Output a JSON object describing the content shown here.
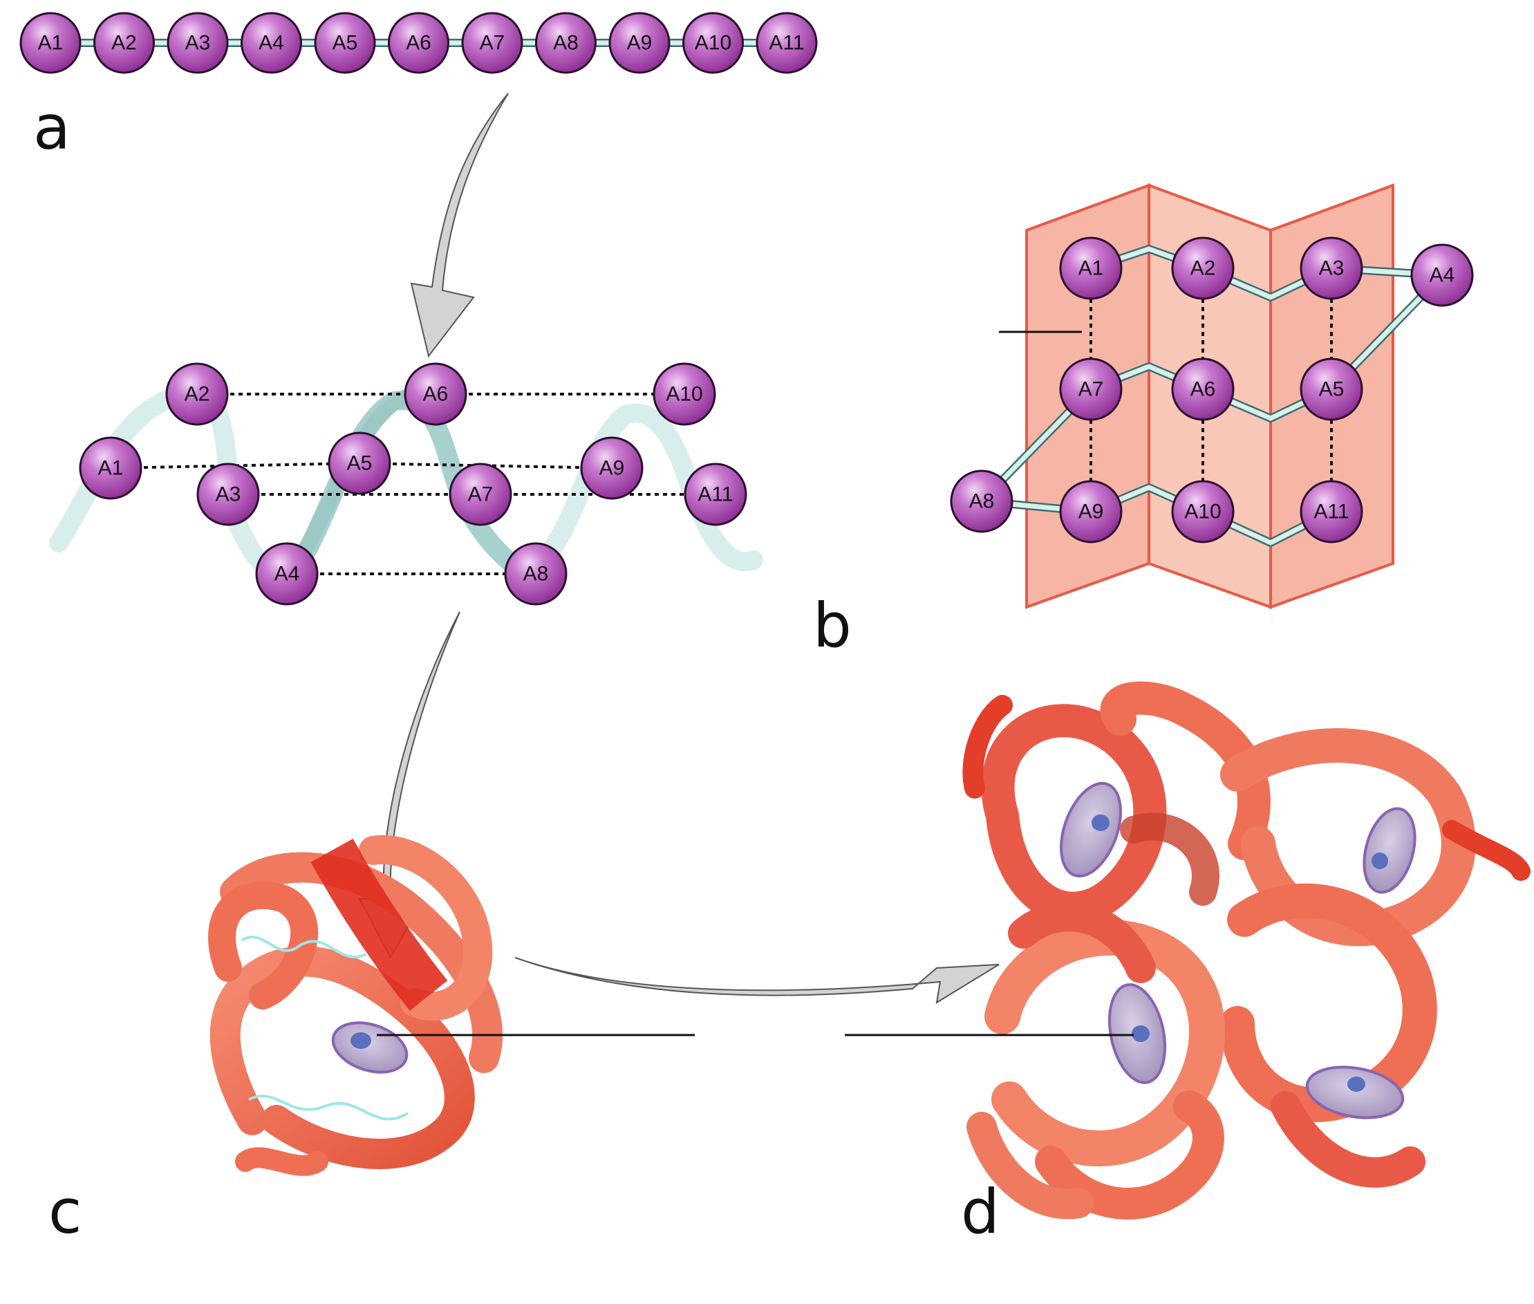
{
  "panels": {
    "a": "a",
    "b": "b",
    "c": "c",
    "d": "d"
  },
  "primary_chain": [
    "A1",
    "A2",
    "A3",
    "A4",
    "A5",
    "A6",
    "A7",
    "A8",
    "A9",
    "A10",
    "A11"
  ],
  "alpha_helix": {
    "residues": [
      "A1",
      "A2",
      "A3",
      "A4",
      "A5",
      "A6",
      "A7",
      "A8",
      "A9",
      "A10",
      "A11"
    ]
  },
  "beta_sheet": {
    "row1": [
      "A1",
      "A2",
      "A3",
      "A4"
    ],
    "row2": [
      "A7",
      "A6",
      "A5"
    ],
    "row3": [
      "A8",
      "A9",
      "A10",
      "A11"
    ]
  },
  "colors": {
    "atom": "#a23aa8",
    "atom_highlight": "#e4b8ea",
    "backbone_bond": "#d7f0ee",
    "helix_ribbon": "#a7d1ce",
    "sheet": "#f6b19f",
    "sheet_edge": "#e85a47",
    "tube": "#ee6a4f",
    "heme": "#b2a4c6",
    "arrow": "#d3d3d3"
  },
  "icons": {
    "arrow": "curved-arrow-icon",
    "heme": "heme-disc-icon"
  }
}
